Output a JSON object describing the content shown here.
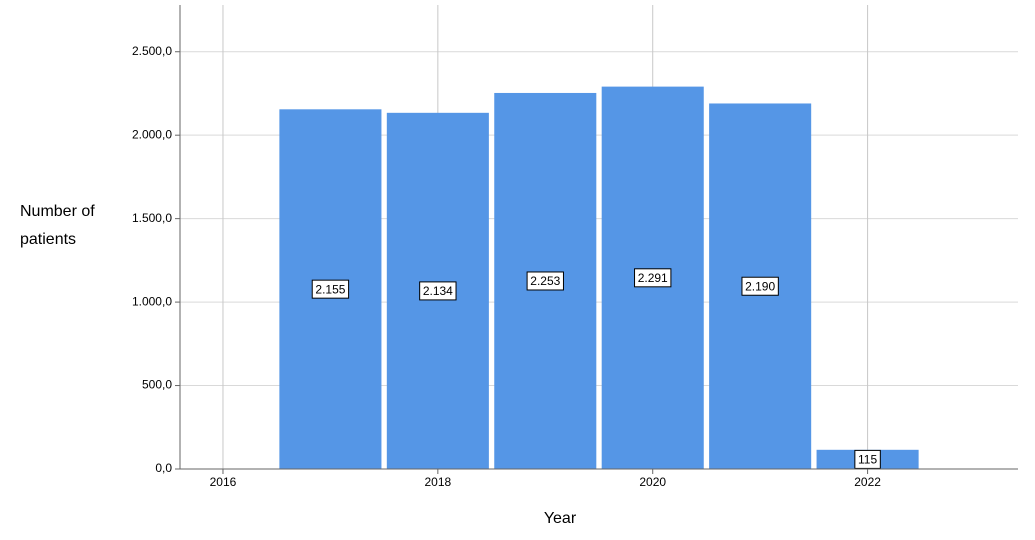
{
  "chart_data": {
    "type": "bar",
    "x_label": "Year",
    "y_label": "Number of patients",
    "x": [
      2017,
      2018,
      2019,
      2020,
      2021,
      2022
    ],
    "values": [
      2155,
      2134,
      2253,
      2291,
      2190,
      115
    ],
    "value_labels": [
      "2.155",
      "2.134",
      "2.253",
      "2.291",
      "2.190",
      "115"
    ],
    "color": "#5596e6",
    "xlim": [
      2015.6,
      2023.4
    ],
    "xticks": [
      2016,
      2018,
      2020,
      2022
    ],
    "ylim": [
      0,
      2780
    ],
    "yticks": [
      {
        "value": 0,
        "label": "0,0"
      },
      {
        "value": 500,
        "label": "500,0"
      },
      {
        "value": 1000,
        "label": "1.000,0"
      },
      {
        "value": 1500,
        "label": "1.500,0"
      },
      {
        "value": 2000,
        "label": "2.000,0"
      },
      {
        "value": 2500,
        "label": "2.500,0"
      }
    ],
    "grid": true
  }
}
